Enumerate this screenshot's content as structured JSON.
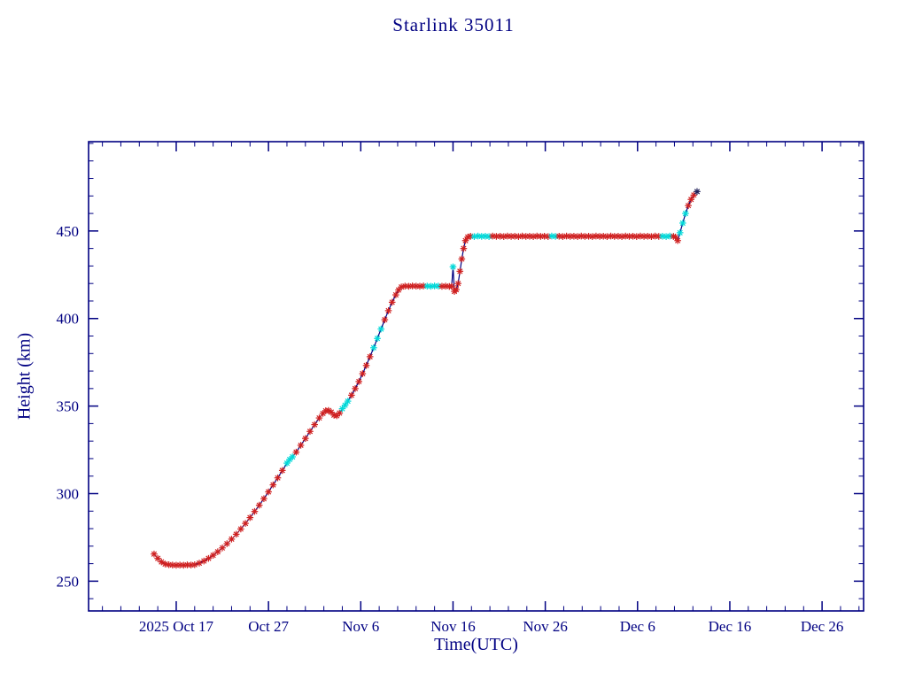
{
  "page": {
    "title": "Starlink 35011"
  },
  "chart_data": {
    "type": "line",
    "title": "Starlink 35011",
    "xlabel": "Time(UTC)",
    "ylabel": "Height (km)",
    "x_unit": "days_since_2025_Oct_14_00UTC",
    "xlim": [
      -6.5,
      77.5
    ],
    "ylim": [
      233,
      501
    ],
    "x_ticks": [
      {
        "d": 3,
        "label": "2025 Oct 17"
      },
      {
        "d": 13,
        "label": "Oct 27"
      },
      {
        "d": 23,
        "label": "Nov 6"
      },
      {
        "d": 33,
        "label": "Nov 16"
      },
      {
        "d": 43,
        "label": "Nov 26"
      },
      {
        "d": 53,
        "label": "Dec 6"
      },
      {
        "d": 63,
        "label": "Dec 16"
      },
      {
        "d": 73,
        "label": "Dec 26"
      }
    ],
    "y_ticks": [
      250,
      300,
      350,
      400,
      450
    ],
    "x_minor_step": 2,
    "y_minor_step": 10,
    "grid": false,
    "legend": "none",
    "line_color": "#000082",
    "marker_colors": {
      "r": "#cf2020",
      "c": "#00d8d8",
      "k": "#20205a"
    },
    "marker_style": "asterisk",
    "points": [
      [
        0.6,
        265.5,
        "r"
      ],
      [
        1.0,
        263.0,
        "r"
      ],
      [
        1.4,
        261.0,
        "r"
      ],
      [
        1.8,
        259.8,
        "r"
      ],
      [
        2.2,
        259.4,
        "r"
      ],
      [
        2.6,
        259.2,
        "r"
      ],
      [
        3.0,
        259.1,
        "r"
      ],
      [
        3.4,
        259.2,
        "r"
      ],
      [
        3.8,
        259.1,
        "r"
      ],
      [
        4.2,
        259.3,
        "r"
      ],
      [
        4.6,
        259.2,
        "r"
      ],
      [
        5.0,
        259.4,
        "r"
      ],
      [
        5.5,
        260.3,
        "r"
      ],
      [
        6.0,
        261.5,
        "r"
      ],
      [
        6.5,
        263.0,
        "r"
      ],
      [
        7.0,
        264.8,
        "r"
      ],
      [
        7.5,
        266.8,
        "r"
      ],
      [
        8.0,
        269.0,
        "r"
      ],
      [
        8.5,
        271.4,
        "r"
      ],
      [
        9.0,
        274.0,
        "r"
      ],
      [
        9.5,
        276.8,
        "r"
      ],
      [
        10.0,
        279.8,
        "r"
      ],
      [
        10.5,
        283.0,
        "r"
      ],
      [
        11.0,
        286.3,
        "r"
      ],
      [
        11.5,
        289.8,
        "r"
      ],
      [
        12.0,
        293.4,
        "r"
      ],
      [
        12.5,
        297.1,
        "r"
      ],
      [
        13.0,
        301.0,
        "r"
      ],
      [
        13.5,
        305.0,
        "r"
      ],
      [
        14.0,
        309.0,
        "r"
      ],
      [
        14.5,
        313.2,
        "r"
      ],
      [
        15.0,
        317.4,
        "c"
      ],
      [
        15.3,
        319.5,
        "c"
      ],
      [
        15.6,
        321.0,
        "c"
      ],
      [
        16.0,
        323.7,
        "r"
      ],
      [
        16.5,
        327.6,
        "r"
      ],
      [
        17.0,
        331.5,
        "r"
      ],
      [
        17.5,
        335.5,
        "r"
      ],
      [
        18.0,
        339.4,
        "r"
      ],
      [
        18.5,
        343.2,
        "r"
      ],
      [
        18.9,
        345.8,
        "r"
      ],
      [
        19.2,
        347.3,
        "r"
      ],
      [
        19.5,
        347.5,
        "r"
      ],
      [
        19.8,
        346.5,
        "r"
      ],
      [
        20.1,
        344.8,
        "r"
      ],
      [
        20.4,
        344.5,
        "r"
      ],
      [
        20.7,
        346.0,
        "r"
      ],
      [
        21.0,
        348.5,
        "c"
      ],
      [
        21.3,
        350.5,
        "c"
      ],
      [
        21.6,
        352.8,
        "c"
      ],
      [
        22.0,
        356.2,
        "r"
      ],
      [
        22.4,
        360.0,
        "r"
      ],
      [
        22.8,
        364.0,
        "r"
      ],
      [
        23.2,
        368.5,
        "r"
      ],
      [
        23.6,
        373.2,
        "r"
      ],
      [
        24.0,
        378.2,
        "r"
      ],
      [
        24.4,
        383.3,
        "c"
      ],
      [
        24.8,
        388.6,
        "c"
      ],
      [
        25.2,
        394.0,
        "c"
      ],
      [
        25.6,
        399.3,
        "r"
      ],
      [
        26.0,
        404.5,
        "r"
      ],
      [
        26.4,
        409.3,
        "r"
      ],
      [
        26.8,
        413.5,
        "r"
      ],
      [
        27.1,
        416.3,
        "r"
      ],
      [
        27.4,
        418.0,
        "r"
      ],
      [
        27.8,
        418.5,
        "r"
      ],
      [
        28.2,
        418.4,
        "r"
      ],
      [
        28.6,
        418.6,
        "r"
      ],
      [
        29.0,
        418.5,
        "r"
      ],
      [
        29.4,
        418.4,
        "r"
      ],
      [
        29.8,
        418.6,
        "r"
      ],
      [
        30.2,
        418.5,
        "c"
      ],
      [
        30.6,
        418.4,
        "c"
      ],
      [
        31.0,
        418.6,
        "c"
      ],
      [
        31.4,
        418.5,
        "c"
      ],
      [
        31.8,
        418.4,
        "r"
      ],
      [
        32.2,
        418.5,
        "r"
      ],
      [
        32.6,
        418.3,
        "r"
      ],
      [
        32.85,
        418.4,
        "r"
      ],
      [
        33.0,
        429.5,
        "c"
      ],
      [
        33.15,
        415.5,
        "r"
      ],
      [
        33.35,
        416.5,
        "r"
      ],
      [
        33.55,
        420.0,
        "r"
      ],
      [
        33.75,
        427.0,
        "r"
      ],
      [
        33.95,
        434.0,
        "r"
      ],
      [
        34.15,
        440.0,
        "r"
      ],
      [
        34.35,
        444.5,
        "r"
      ],
      [
        34.6,
        446.5,
        "r"
      ],
      [
        34.9,
        447.0,
        "r"
      ],
      [
        35.3,
        446.8,
        "c"
      ],
      [
        35.7,
        447.1,
        "c"
      ],
      [
        36.1,
        446.9,
        "c"
      ],
      [
        36.5,
        447.0,
        "c"
      ],
      [
        36.9,
        446.8,
        "c"
      ],
      [
        37.3,
        447.1,
        "r"
      ],
      [
        37.7,
        446.9,
        "r"
      ],
      [
        38.1,
        447.0,
        "r"
      ],
      [
        38.5,
        446.8,
        "r"
      ],
      [
        38.9,
        447.1,
        "r"
      ],
      [
        39.3,
        446.9,
        "r"
      ],
      [
        39.7,
        447.0,
        "r"
      ],
      [
        40.1,
        446.8,
        "r"
      ],
      [
        40.5,
        447.1,
        "r"
      ],
      [
        40.9,
        446.9,
        "r"
      ],
      [
        41.3,
        447.0,
        "r"
      ],
      [
        41.7,
        446.8,
        "r"
      ],
      [
        42.1,
        447.1,
        "r"
      ],
      [
        42.5,
        446.9,
        "r"
      ],
      [
        42.9,
        447.0,
        "r"
      ],
      [
        43.3,
        446.8,
        "r"
      ],
      [
        43.7,
        447.1,
        "c"
      ],
      [
        44.1,
        446.9,
        "c"
      ],
      [
        44.5,
        447.0,
        "r"
      ],
      [
        44.9,
        446.8,
        "r"
      ],
      [
        45.3,
        447.1,
        "r"
      ],
      [
        45.7,
        446.9,
        "r"
      ],
      [
        46.1,
        447.0,
        "r"
      ],
      [
        46.5,
        446.8,
        "r"
      ],
      [
        46.9,
        447.1,
        "r"
      ],
      [
        47.3,
        446.9,
        "r"
      ],
      [
        47.7,
        447.0,
        "r"
      ],
      [
        48.1,
        446.8,
        "r"
      ],
      [
        48.5,
        447.1,
        "r"
      ],
      [
        48.9,
        446.9,
        "r"
      ],
      [
        49.3,
        447.0,
        "r"
      ],
      [
        49.7,
        446.8,
        "r"
      ],
      [
        50.1,
        447.1,
        "r"
      ],
      [
        50.5,
        446.9,
        "r"
      ],
      [
        50.9,
        447.0,
        "r"
      ],
      [
        51.3,
        446.8,
        "r"
      ],
      [
        51.7,
        447.1,
        "r"
      ],
      [
        52.1,
        446.9,
        "r"
      ],
      [
        52.5,
        447.0,
        "r"
      ],
      [
        52.9,
        446.8,
        "r"
      ],
      [
        53.3,
        447.1,
        "r"
      ],
      [
        53.7,
        446.9,
        "r"
      ],
      [
        54.1,
        447.0,
        "r"
      ],
      [
        54.5,
        446.8,
        "r"
      ],
      [
        54.9,
        447.1,
        "r"
      ],
      [
        55.3,
        446.9,
        "r"
      ],
      [
        55.7,
        447.0,
        "c"
      ],
      [
        56.1,
        446.8,
        "c"
      ],
      [
        56.5,
        447.1,
        "c"
      ],
      [
        56.9,
        446.9,
        "r"
      ],
      [
        57.1,
        446.5,
        "r"
      ],
      [
        57.35,
        444.5,
        "r"
      ],
      [
        57.6,
        449.0,
        "c"
      ],
      [
        57.9,
        454.5,
        "c"
      ],
      [
        58.2,
        460.0,
        "c"
      ],
      [
        58.5,
        464.5,
        "r"
      ],
      [
        58.8,
        468.0,
        "r"
      ],
      [
        59.1,
        470.5,
        "r"
      ],
      [
        59.45,
        472.5,
        "k"
      ]
    ]
  }
}
